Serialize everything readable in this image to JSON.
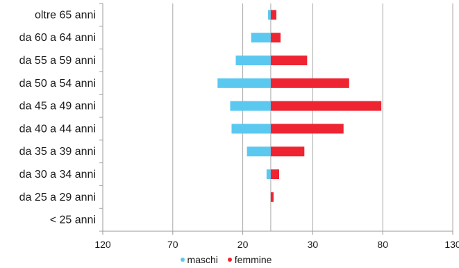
{
  "chart_data": {
    "type": "bar",
    "orientation": "horizontal",
    "layout": "diverging",
    "categories": [
      "< 25 anni",
      "da 25 a 29 anni",
      "da 30 a 34 anni",
      "da 35 a 39 anni",
      "da 40 a 44 anni",
      "da 45 a 49 anni",
      "da 50 a 54 anni",
      "da 55 a 59 anni",
      "da 60 a 64 anni",
      "oltre 65 anni"
    ],
    "series": [
      {
        "name": "maschi",
        "color": "#5bc8f0",
        "values": [
          0,
          0,
          3,
          17,
          28,
          29,
          38,
          25,
          14,
          2
        ]
      },
      {
        "name": "femmine",
        "color": "#ee2432",
        "values": [
          0,
          2,
          6,
          24,
          52,
          79,
          56,
          26,
          7,
          4
        ]
      }
    ],
    "x_tick_labels": [
      "120",
      "70",
      "20",
      "30",
      "80",
      "130"
    ],
    "xlim": [
      -120,
      130
    ],
    "grid": true,
    "legend_position": "bottom"
  }
}
